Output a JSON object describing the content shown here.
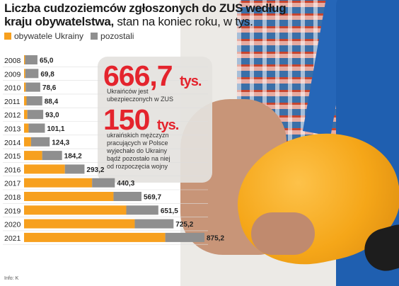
{
  "title": {
    "bold": "Liczba cudzoziemców zgłoszonych do ZUS według kraju obywatelstwa,",
    "rest": " stan na koniec roku, w tys."
  },
  "legend": {
    "ukraine": "obywatele Ukrainy",
    "others": "pozostali"
  },
  "highlight": {
    "big1_value": "666,7",
    "big1_unit": "tys.",
    "sub1_lines": [
      "Ukraińców jest",
      "ubezpieczonych w ZUS"
    ],
    "big2_value": "150",
    "big2_unit": "tys.",
    "sub2_lines": [
      "ukraińskich mężczyzn",
      "pracujących w Polsce",
      "wyjechało do Ukrainy",
      "bądź pozostało na niej",
      "od rozpoczęcia wojny"
    ]
  },
  "source": "Info: K",
  "colors": {
    "ukraine": "#f7a01e",
    "others": "#8f8f8f",
    "accent": "#e4242d"
  },
  "chart_data": {
    "type": "bar",
    "orientation": "horizontal",
    "stacked": true,
    "categories": [
      "2008",
      "2009",
      "2010",
      "2011",
      "2012",
      "2013",
      "2014",
      "2015",
      "2016",
      "2017",
      "2018",
      "2019",
      "2020",
      "2021"
    ],
    "series": [
      {
        "name": "obywatele Ukrainy",
        "values": [
          5,
          6,
          8,
          12,
          16,
          22,
          34,
          88,
          198,
          330,
          434,
          496,
          537,
          685
        ]
      },
      {
        "name": "pozostali",
        "values": [
          60,
          63.8,
          70.6,
          76.4,
          77,
          79.1,
          90.3,
          96.2,
          95.2,
          110.3,
          135.7,
          155.5,
          188.2,
          190.2
        ]
      }
    ],
    "totals": [
      "65,0",
      "69,8",
      "78,6",
      "88,4",
      "93,0",
      "101,1",
      "124,3",
      "184,2",
      "293,2",
      "440,3",
      "569,7",
      "651,5",
      "725,2",
      "875,2"
    ],
    "xlim": [
      0,
      900
    ],
    "title": "Liczba cudzoziemców zgłoszonych do ZUS według kraju obywatelstwa, stan na koniec roku, w tys."
  }
}
